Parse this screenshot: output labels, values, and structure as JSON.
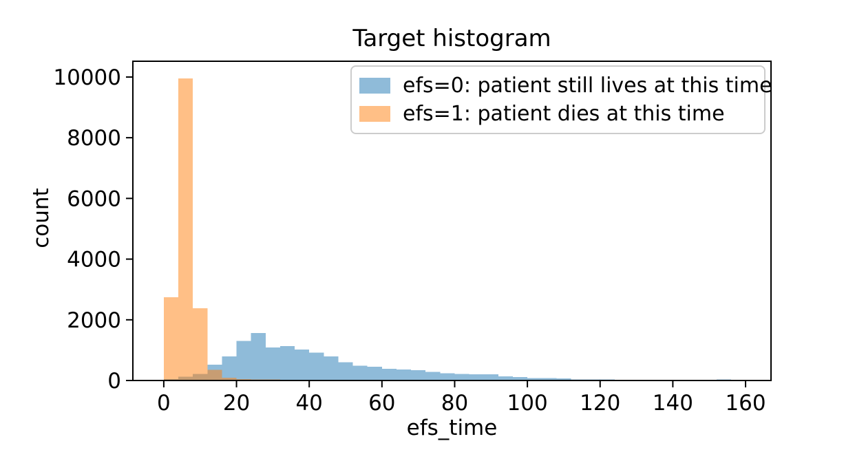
{
  "chart_data": {
    "type": "histogram",
    "title": "Target histogram",
    "xlabel": "efs_time",
    "ylabel": "count",
    "grid": false,
    "legend_position": "upper right",
    "bins": {
      "start": 0,
      "width": 4,
      "count": 40
    },
    "xlim": [
      -8.5,
      167
    ],
    "ylim": [
      0,
      10520
    ],
    "xticks": [
      0,
      20,
      40,
      60,
      80,
      100,
      120,
      140,
      160
    ],
    "yticks": [
      0,
      2000,
      4000,
      6000,
      8000,
      10000
    ],
    "series": [
      {
        "name": "efs=0: patient still lives at this time",
        "color": "#1f77b4",
        "alpha": 0.5,
        "counts": [
          50,
          120,
          210,
          520,
          790,
          1300,
          1560,
          1090,
          1130,
          1015,
          920,
          790,
          600,
          490,
          450,
          390,
          360,
          345,
          285,
          240,
          210,
          205,
          200,
          140,
          110,
          80,
          75,
          70,
          35,
          30,
          30,
          28,
          25,
          25,
          25,
          22,
          20,
          20,
          30,
          0
        ]
      },
      {
        "name": "efs=1: patient dies at this time",
        "color": "#ff7f0e",
        "alpha": 0.5,
        "counts": [
          2740,
          9950,
          2380,
          350,
          90,
          45,
          35,
          30,
          25,
          0,
          0,
          0,
          0,
          0,
          0,
          0,
          0,
          0,
          0,
          0,
          0,
          0,
          0,
          0,
          0,
          0,
          0,
          0,
          0,
          0,
          0,
          0,
          0,
          0,
          0,
          0,
          0,
          0,
          0,
          0
        ]
      }
    ]
  }
}
